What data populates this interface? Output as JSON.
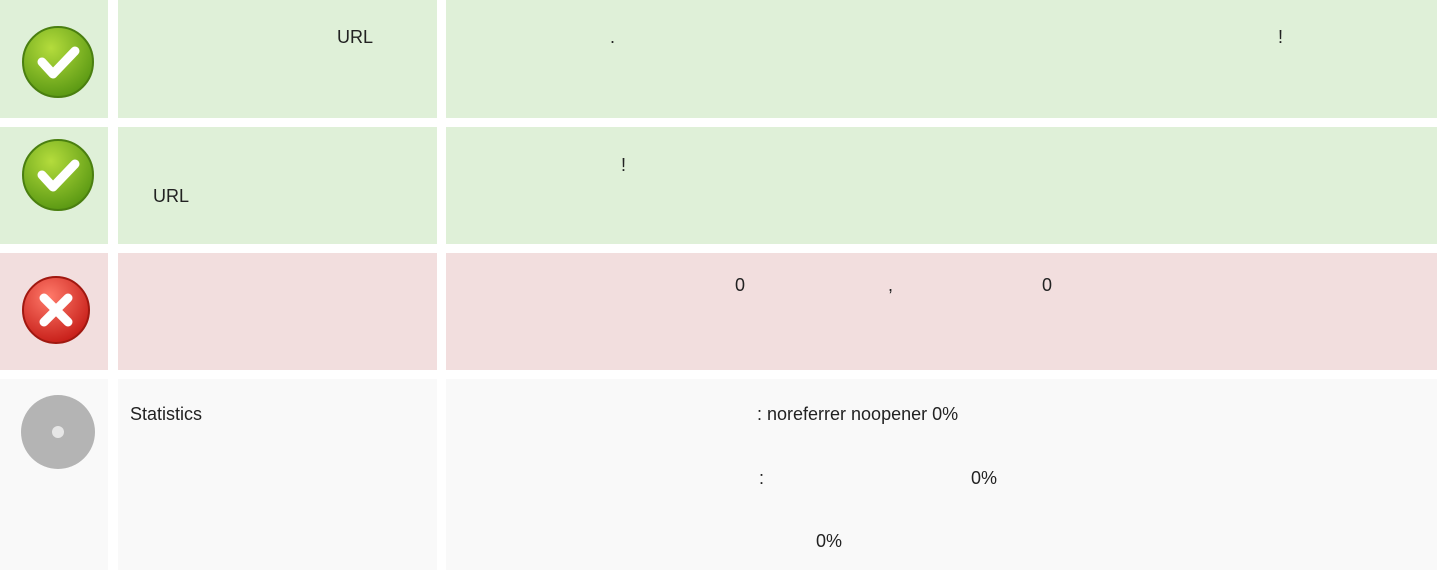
{
  "rows": [
    {
      "label": [
        "URL"
      ],
      "content": [
        ".",
        "!"
      ]
    },
    {
      "label": [
        "URL"
      ],
      "content": [
        "!"
      ]
    },
    {
      "label": [],
      "content": [
        "0",
        ",",
        "0"
      ]
    },
    {
      "label": [
        "Statistics"
      ],
      "content": [
        ": noreferrer noopener 0%",
        ":",
        "0%",
        "0%"
      ]
    }
  ]
}
